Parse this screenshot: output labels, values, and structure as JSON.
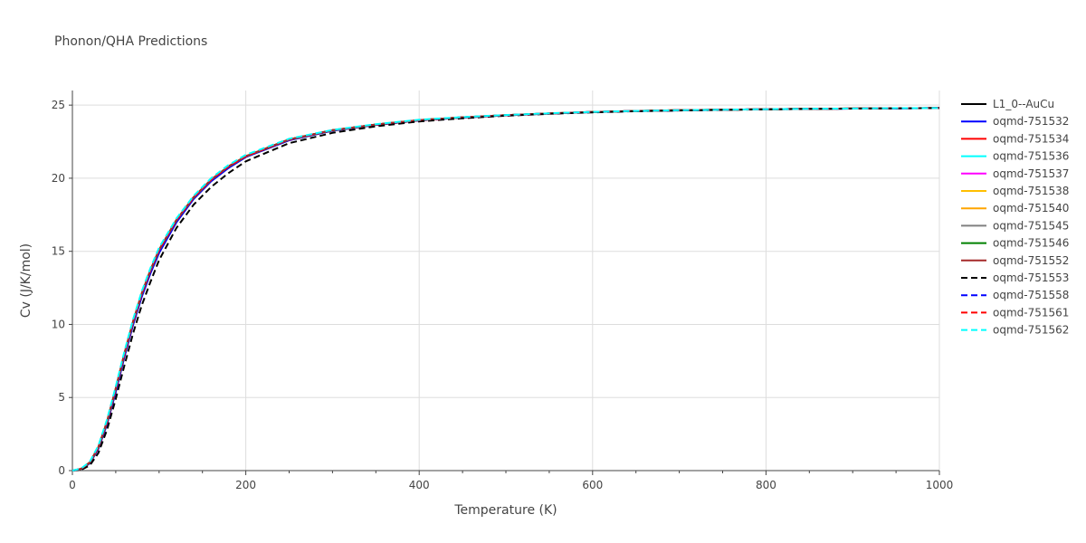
{
  "chart_data": {
    "type": "line",
    "title": "Phonon/QHA Predictions",
    "xlabel": "Temperature (K)",
    "ylabel": "Cv (J/K/mol)",
    "xlim": [
      0,
      1000
    ],
    "ylim": [
      0,
      26
    ],
    "x_ticks": [
      0,
      200,
      400,
      600,
      800,
      1000
    ],
    "y_ticks": [
      0,
      5,
      10,
      15,
      20,
      25
    ],
    "grid": true,
    "legend_position": "right",
    "x": [
      0,
      10,
      20,
      30,
      40,
      50,
      60,
      70,
      80,
      90,
      100,
      120,
      140,
      160,
      180,
      200,
      250,
      300,
      350,
      400,
      450,
      500,
      550,
      600,
      650,
      700,
      750,
      800,
      850,
      900,
      950,
      1000
    ],
    "series": [
      {
        "name": "L1_0--AuCu",
        "color": "#000000",
        "dash": "solid",
        "values": [
          0,
          0.1,
          0.5,
          1.5,
          3.2,
          5.4,
          7.8,
          10.0,
          11.9,
          13.5,
          14.9,
          17.0,
          18.6,
          19.8,
          20.7,
          21.45,
          22.6,
          23.25,
          23.65,
          23.95,
          24.15,
          24.3,
          24.42,
          24.52,
          24.59,
          24.64,
          24.68,
          24.71,
          24.74,
          24.76,
          24.78,
          24.8
        ]
      },
      {
        "name": "oqmd-751532",
        "color": "#0000ff",
        "dash": "solid",
        "values": [
          0,
          0.1,
          0.5,
          1.5,
          3.2,
          5.4,
          7.8,
          10.0,
          11.9,
          13.5,
          14.9,
          17.0,
          18.6,
          19.8,
          20.7,
          21.45,
          22.6,
          23.25,
          23.65,
          23.95,
          24.15,
          24.3,
          24.42,
          24.52,
          24.59,
          24.64,
          24.68,
          24.71,
          24.74,
          24.76,
          24.78,
          24.8
        ]
      },
      {
        "name": "oqmd-751534",
        "color": "#ff0000",
        "dash": "solid",
        "values": [
          0,
          0.12,
          0.55,
          1.6,
          3.35,
          5.6,
          8.0,
          10.2,
          12.1,
          13.7,
          15.1,
          17.15,
          18.7,
          19.9,
          20.8,
          21.5,
          22.65,
          23.28,
          23.67,
          23.97,
          24.17,
          24.31,
          24.43,
          24.53,
          24.6,
          24.65,
          24.69,
          24.72,
          24.75,
          24.77,
          24.79,
          24.8
        ]
      },
      {
        "name": "oqmd-751536",
        "color": "#00ffff",
        "dash": "solid",
        "values": [
          0,
          0.12,
          0.55,
          1.6,
          3.35,
          5.6,
          8.0,
          10.2,
          12.1,
          13.7,
          15.1,
          17.15,
          18.7,
          19.9,
          20.8,
          21.5,
          22.65,
          23.28,
          23.67,
          23.97,
          24.17,
          24.31,
          24.43,
          24.53,
          24.6,
          24.65,
          24.69,
          24.72,
          24.75,
          24.77,
          24.79,
          24.8
        ]
      },
      {
        "name": "oqmd-751537",
        "color": "#ff00ff",
        "dash": "solid",
        "values": [
          0,
          0.12,
          0.55,
          1.6,
          3.35,
          5.6,
          8.0,
          10.2,
          12.1,
          13.7,
          15.1,
          17.15,
          18.7,
          19.9,
          20.8,
          21.5,
          22.65,
          23.28,
          23.67,
          23.97,
          24.17,
          24.31,
          24.43,
          24.53,
          24.6,
          24.65,
          24.69,
          24.72,
          24.75,
          24.77,
          24.79,
          24.8
        ]
      },
      {
        "name": "oqmd-751538",
        "color": "#ffbf00",
        "dash": "solid",
        "values": [
          0,
          0.12,
          0.55,
          1.6,
          3.35,
          5.6,
          8.0,
          10.2,
          12.1,
          13.7,
          15.1,
          17.15,
          18.7,
          19.9,
          20.8,
          21.5,
          22.65,
          23.28,
          23.67,
          23.97,
          24.17,
          24.31,
          24.43,
          24.53,
          24.6,
          24.65,
          24.69,
          24.72,
          24.75,
          24.77,
          24.79,
          24.8
        ]
      },
      {
        "name": "oqmd-751540",
        "color": "#ffa500",
        "dash": "solid",
        "values": [
          0,
          0.12,
          0.55,
          1.6,
          3.35,
          5.6,
          8.0,
          10.2,
          12.1,
          13.7,
          15.1,
          17.15,
          18.7,
          19.9,
          20.8,
          21.5,
          22.65,
          23.28,
          23.67,
          23.97,
          24.17,
          24.31,
          24.43,
          24.53,
          24.6,
          24.65,
          24.69,
          24.72,
          24.75,
          24.77,
          24.79,
          24.8
        ]
      },
      {
        "name": "oqmd-751545",
        "color": "#808080",
        "dash": "solid",
        "values": [
          0,
          0.12,
          0.55,
          1.6,
          3.35,
          5.6,
          8.0,
          10.2,
          12.1,
          13.7,
          15.1,
          17.15,
          18.7,
          19.9,
          20.8,
          21.5,
          22.65,
          23.28,
          23.67,
          23.97,
          24.17,
          24.31,
          24.43,
          24.53,
          24.6,
          24.65,
          24.69,
          24.72,
          24.75,
          24.77,
          24.79,
          24.8
        ]
      },
      {
        "name": "oqmd-751546",
        "color": "#008000",
        "dash": "solid",
        "values": [
          0,
          0.12,
          0.55,
          1.6,
          3.35,
          5.6,
          8.0,
          10.2,
          12.1,
          13.7,
          15.1,
          17.15,
          18.7,
          19.9,
          20.8,
          21.5,
          22.65,
          23.28,
          23.67,
          23.97,
          24.17,
          24.31,
          24.43,
          24.53,
          24.6,
          24.65,
          24.69,
          24.72,
          24.75,
          24.77,
          24.79,
          24.8
        ]
      },
      {
        "name": "oqmd-751552",
        "color": "#a52a2a",
        "dash": "solid",
        "values": [
          0,
          0.12,
          0.55,
          1.6,
          3.35,
          5.6,
          8.0,
          10.2,
          12.1,
          13.7,
          15.1,
          17.15,
          18.7,
          19.9,
          20.8,
          21.5,
          22.65,
          23.28,
          23.67,
          23.97,
          24.17,
          24.31,
          24.43,
          24.53,
          24.6,
          24.65,
          24.69,
          24.72,
          24.75,
          24.77,
          24.79,
          24.8
        ]
      },
      {
        "name": "oqmd-751553",
        "color": "#000000",
        "dash": "dash",
        "values": [
          0,
          0.05,
          0.35,
          1.2,
          2.8,
          4.9,
          7.2,
          9.4,
          11.3,
          12.9,
          14.4,
          16.6,
          18.2,
          19.4,
          20.35,
          21.15,
          22.4,
          23.1,
          23.55,
          23.88,
          24.1,
          24.27,
          24.4,
          24.5,
          24.58,
          24.63,
          24.67,
          24.71,
          24.74,
          24.76,
          24.78,
          24.8
        ]
      },
      {
        "name": "oqmd-751558",
        "color": "#0000ff",
        "dash": "dash",
        "values": [
          0,
          0.12,
          0.55,
          1.6,
          3.35,
          5.6,
          8.0,
          10.2,
          12.1,
          13.7,
          15.1,
          17.15,
          18.7,
          19.9,
          20.8,
          21.5,
          22.65,
          23.28,
          23.67,
          23.97,
          24.17,
          24.31,
          24.43,
          24.53,
          24.6,
          24.65,
          24.69,
          24.72,
          24.75,
          24.77,
          24.79,
          24.8
        ]
      },
      {
        "name": "oqmd-751561",
        "color": "#ff0000",
        "dash": "dash",
        "values": [
          0,
          0.12,
          0.55,
          1.6,
          3.35,
          5.6,
          8.0,
          10.2,
          12.1,
          13.7,
          15.1,
          17.15,
          18.7,
          19.9,
          20.8,
          21.5,
          22.65,
          23.28,
          23.67,
          23.97,
          24.17,
          24.31,
          24.43,
          24.53,
          24.6,
          24.65,
          24.69,
          24.72,
          24.75,
          24.77,
          24.79,
          24.8
        ]
      },
      {
        "name": "oqmd-751562",
        "color": "#00ffff",
        "dash": "dash",
        "values": [
          0,
          0.14,
          0.6,
          1.7,
          3.5,
          5.75,
          8.15,
          10.35,
          12.25,
          13.85,
          15.25,
          17.25,
          18.8,
          20.0,
          20.9,
          21.6,
          22.7,
          23.3,
          23.7,
          24.0,
          24.18,
          24.32,
          24.44,
          24.54,
          24.6,
          24.65,
          24.69,
          24.72,
          24.75,
          24.77,
          24.79,
          24.8
        ]
      }
    ]
  }
}
